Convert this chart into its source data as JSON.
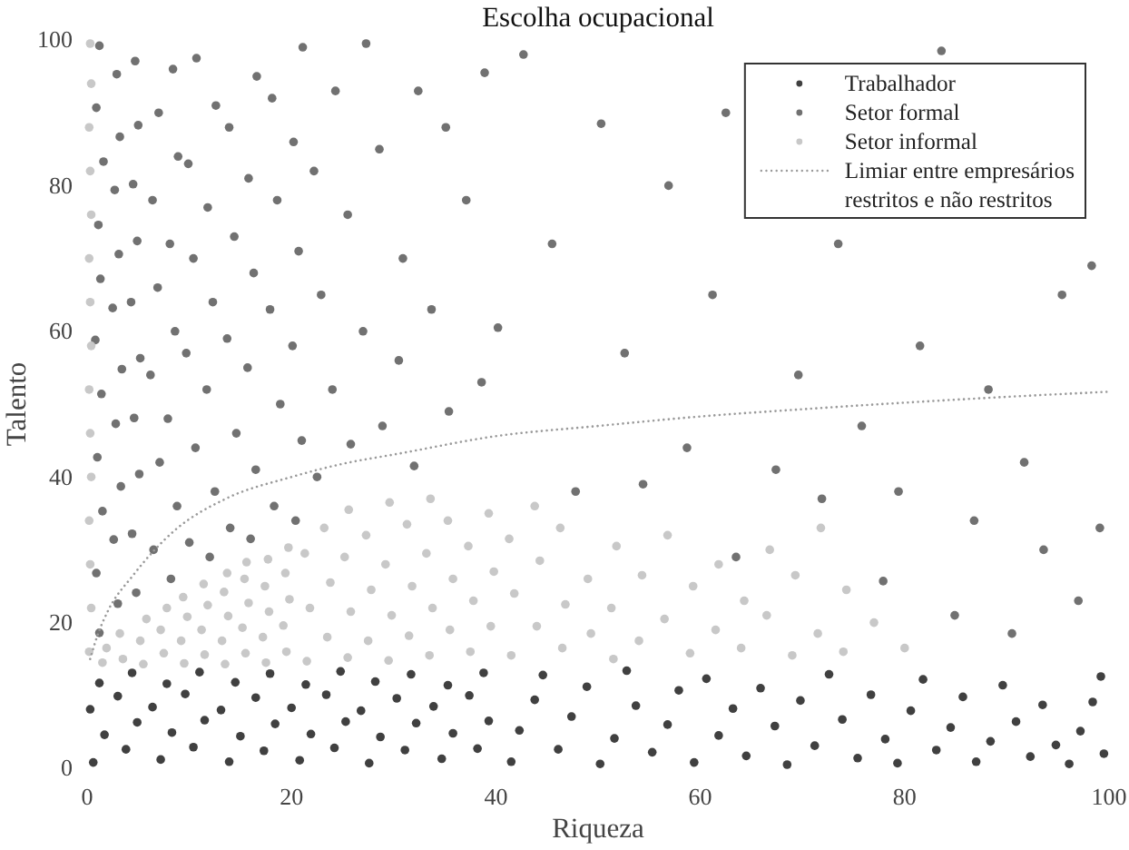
{
  "chart_data": {
    "type": "scatter",
    "title": "Escolha ocupacional",
    "xlabel": "Riqueza",
    "ylabel": "Talento",
    "xlim": [
      0,
      100
    ],
    "ylim": [
      0,
      100
    ],
    "xticks": [
      0,
      20,
      40,
      60,
      80,
      100
    ],
    "yticks": [
      0,
      20,
      40,
      60,
      80,
      100
    ],
    "legend": "top right",
    "marker": "circle",
    "series": [
      {
        "name": "Trabalhador",
        "color": "#404040",
        "x": [
          0.6,
          1.7,
          0.3,
          1.2,
          3.8,
          4.9,
          3.0,
          4.4,
          7.2,
          8.3,
          6.4,
          7.8,
          10.4,
          11.5,
          9.6,
          11.0,
          13.9,
          15.0,
          13.1,
          14.5,
          17.3,
          18.4,
          16.5,
          17.9,
          20.8,
          21.9,
          20.0,
          21.4,
          24.2,
          25.3,
          23.4,
          24.8,
          27.6,
          28.7,
          26.8,
          28.2,
          31.1,
          32.2,
          30.3,
          31.7,
          34.7,
          35.8,
          33.9,
          35.3,
          38.2,
          39.3,
          37.4,
          38.8,
          41.5,
          42.3,
          43.8,
          44.6,
          46.1,
          47.4,
          48.9,
          50.2,
          51.6,
          52.8,
          53.7,
          55.3,
          56.8,
          57.9,
          59.4,
          60.6,
          61.8,
          63.2,
          64.5,
          65.9,
          67.3,
          68.5,
          69.8,
          71.2,
          72.6,
          73.9,
          75.4,
          76.7,
          78.1,
          79.3,
          80.6,
          81.8,
          83.1,
          84.5,
          85.7,
          87.0,
          88.4,
          89.6,
          90.9,
          92.3,
          93.5,
          94.8,
          96.1,
          97.2,
          98.4,
          99.5,
          99.2
        ],
        "values": [
          0.8,
          4.6,
          8.1,
          11.7,
          2.6,
          6.3,
          9.9,
          13.1,
          1.2,
          4.9,
          8.4,
          11.6,
          2.9,
          6.6,
          10.2,
          13.2,
          0.9,
          4.4,
          8.0,
          11.8,
          2.4,
          6.1,
          9.7,
          13.0,
          1.1,
          4.7,
          8.3,
          11.5,
          2.8,
          6.4,
          10.1,
          13.3,
          0.7,
          4.3,
          7.9,
          11.9,
          2.5,
          6.2,
          9.6,
          12.9,
          1.3,
          4.8,
          8.5,
          11.4,
          2.7,
          6.5,
          10.0,
          13.1,
          0.9,
          5.2,
          9.4,
          12.8,
          2.6,
          7.1,
          11.2,
          0.6,
          4.1,
          13.4,
          8.6,
          2.2,
          6.0,
          10.7,
          0.8,
          12.3,
          4.5,
          8.2,
          1.7,
          11.0,
          5.8,
          0.5,
          9.3,
          3.1,
          12.9,
          6.7,
          1.4,
          10.1,
          4.0,
          0.7,
          7.9,
          12.2,
          2.5,
          5.6,
          9.8,
          0.9,
          3.7,
          11.4,
          6.4,
          1.6,
          8.7,
          3.2,
          0.6,
          5.1,
          9.1,
          2.0,
          12.6
        ]
      },
      {
        "name": "Setor formal",
        "color": "#717171",
        "x": [
          1.2,
          0.9,
          1.5,
          1.0,
          1.4,
          0.8,
          1.3,
          1.1,
          1.6,
          0.9,
          1.2,
          3.0,
          2.6,
          3.3,
          2.8,
          3.4,
          2.5,
          3.1,
          2.7,
          3.2,
          2.9,
          4.8,
          4.4,
          5.1,
          4.6,
          5.2,
          4.3,
          4.9,
          4.5,
          5.0,
          4.7,
          6.5,
          7.1,
          6.2,
          6.9,
          6.4,
          7.0,
          8.2,
          8.8,
          7.9,
          8.6,
          8.1,
          8.9,
          8.4,
          10.0,
          10.6,
          9.7,
          10.4,
          9.9,
          10.7,
          12.0,
          12.5,
          11.7,
          12.3,
          11.8,
          12.6,
          14.0,
          14.6,
          13.7,
          14.4,
          13.9,
          16.0,
          16.5,
          15.7,
          16.3,
          15.8,
          16.6,
          18.3,
          18.9,
          17.9,
          18.6,
          18.1,
          20.4,
          21.0,
          20.1,
          20.7,
          20.2,
          21.1,
          22.5,
          22.9,
          22.2,
          24.0,
          24.3,
          25.8,
          25.5,
          27.3,
          27.0,
          28.9,
          28.6,
          30.5,
          30.9,
          32.0,
          32.4,
          33.7,
          35.4,
          35.1,
          37.1,
          38.6,
          38.9,
          40.2,
          42.7,
          45.5,
          47.8,
          50.3,
          52.6,
          54.4,
          56.9,
          58.7,
          61.2,
          63.5,
          62.5,
          67.4,
          69.6,
          71.9,
          73.5,
          75.8,
          77.9,
          79.4,
          81.5,
          83.6,
          84.9,
          86.8,
          88.2,
          90.5,
          91.7,
          93.6,
          95.4,
          97.0,
          98.3,
          99.1
        ],
        "values": [
          18.6,
          26.8,
          35.3,
          42.7,
          51.4,
          58.8,
          67.2,
          74.6,
          83.3,
          90.7,
          99.2,
          22.6,
          31.4,
          38.7,
          47.3,
          54.8,
          63.2,
          70.6,
          79.4,
          86.7,
          95.3,
          24.1,
          32.2,
          40.4,
          48.1,
          56.3,
          64.0,
          72.4,
          80.2,
          88.3,
          97.1,
          30,
          42,
          54,
          66,
          78,
          90,
          26,
          36,
          48,
          60,
          72,
          84,
          96,
          31,
          44,
          57,
          70,
          83,
          97.5,
          29,
          38,
          52,
          64,
          77,
          91,
          33,
          46,
          59,
          73,
          88,
          31.5,
          41,
          55,
          68,
          81,
          95,
          36,
          50,
          63,
          78,
          92,
          34,
          45,
          58,
          71,
          86,
          99,
          40,
          65,
          82,
          52,
          93,
          44.5,
          76,
          99.5,
          60,
          47,
          85,
          56,
          70,
          41.5,
          93,
          63,
          49,
          88,
          78,
          53,
          95.5,
          60.5,
          98,
          72,
          38,
          88.5,
          57,
          39,
          80,
          44,
          65,
          29,
          90,
          41,
          54,
          37,
          72,
          47,
          25.7,
          38,
          58,
          98.5,
          21,
          34,
          52,
          18.5,
          42,
          30,
          65,
          23,
          69,
          33
        ]
      },
      {
        "name": "Setor informal",
        "color": "#c8c8c8",
        "x": [
          0.2,
          0.4,
          0.3,
          0.2,
          0.4,
          0.3,
          0.2,
          0.4,
          0.3,
          0.2,
          0.4,
          0.3,
          0.2,
          0.4,
          0.3,
          1.5,
          1.9,
          3.5,
          3.2,
          5.5,
          5.2,
          5.8,
          7.5,
          7.2,
          7.8,
          9.5,
          9.2,
          9.8,
          9.4,
          11.5,
          11.2,
          11.8,
          11.4,
          13.5,
          13.2,
          13.8,
          13.4,
          13.7,
          15.5,
          15.2,
          15.8,
          15.4,
          15.6,
          17.5,
          17.2,
          17.8,
          17.4,
          17.7,
          19.5,
          19.2,
          19.8,
          19.4,
          19.7,
          21.5,
          21.8,
          21.3,
          23.5,
          23.8,
          23.2,
          25.5,
          25.8,
          25.2,
          25.6,
          27.5,
          27.8,
          27.3,
          29.5,
          29.8,
          29.2,
          29.6,
          31.5,
          31.8,
          31.3,
          33.5,
          33.8,
          33.2,
          33.6,
          35.5,
          35.8,
          35.3,
          37.5,
          37.8,
          37.3,
          39.5,
          39.8,
          39.3,
          41.5,
          41.8,
          41.3,
          44,
          44.3,
          43.8,
          46.5,
          46.8,
          46.3,
          49,
          49.3,
          51.5,
          51.8,
          51.3,
          54,
          54.3,
          56.5,
          56.8,
          59,
          59.3,
          61.5,
          61.8,
          64,
          64.3,
          66.5,
          66.8,
          69,
          69.3,
          71.5,
          71.8,
          74,
          74.3,
          77,
          80
        ],
        "values": [
          16,
          22,
          28,
          34,
          40,
          46,
          52,
          58,
          64,
          70,
          76,
          82,
          88,
          94,
          99.5,
          14.5,
          16.5,
          15,
          18.5,
          14.3,
          17.5,
          20.5,
          15.8,
          19,
          22,
          14.4,
          17.5,
          20.8,
          23.5,
          15.6,
          19,
          22.4,
          25.3,
          14.3,
          17.5,
          20.9,
          24.2,
          26.8,
          15.8,
          19.3,
          22.7,
          26,
          28.3,
          14.5,
          18,
          21.5,
          25,
          28.7,
          16,
          19.6,
          23.2,
          26.8,
          30.3,
          14.7,
          22,
          29.5,
          18,
          25.5,
          33,
          15.2,
          21.5,
          29,
          35.5,
          17.5,
          24.5,
          32,
          14.8,
          21,
          28,
          36.5,
          18.2,
          25,
          33.5,
          15.5,
          22,
          29.5,
          37,
          19,
          26,
          34,
          16,
          23,
          30.5,
          19.5,
          27,
          35,
          15.5,
          24,
          31.5,
          19.5,
          28.5,
          36,
          16.5,
          22.5,
          33,
          26,
          18.5,
          15,
          30.5,
          22,
          17.5,
          26.5,
          20.5,
          32,
          15.8,
          25,
          19,
          28,
          16.5,
          23,
          21,
          30,
          15.5,
          26.5,
          18.5,
          33,
          16,
          24.5,
          20,
          16.5
        ]
      },
      {
        "name": "Limiar entre empresários restritos e não restritos",
        "type": "line",
        "color": "#9a9a9a",
        "line_style": "dotted",
        "marker": "none",
        "x": [
          0.3,
          1,
          2,
          4.5,
          8.6,
          13.4,
          20,
          25,
          30.5,
          40,
          50,
          60,
          70,
          80,
          90,
          100
        ],
        "values": [
          15,
          18.2,
          21.5,
          26.5,
          32.7,
          36.9,
          40,
          41.8,
          43.2,
          45.6,
          47,
          48.3,
          49.3,
          50.2,
          51,
          51.7
        ]
      }
    ]
  }
}
